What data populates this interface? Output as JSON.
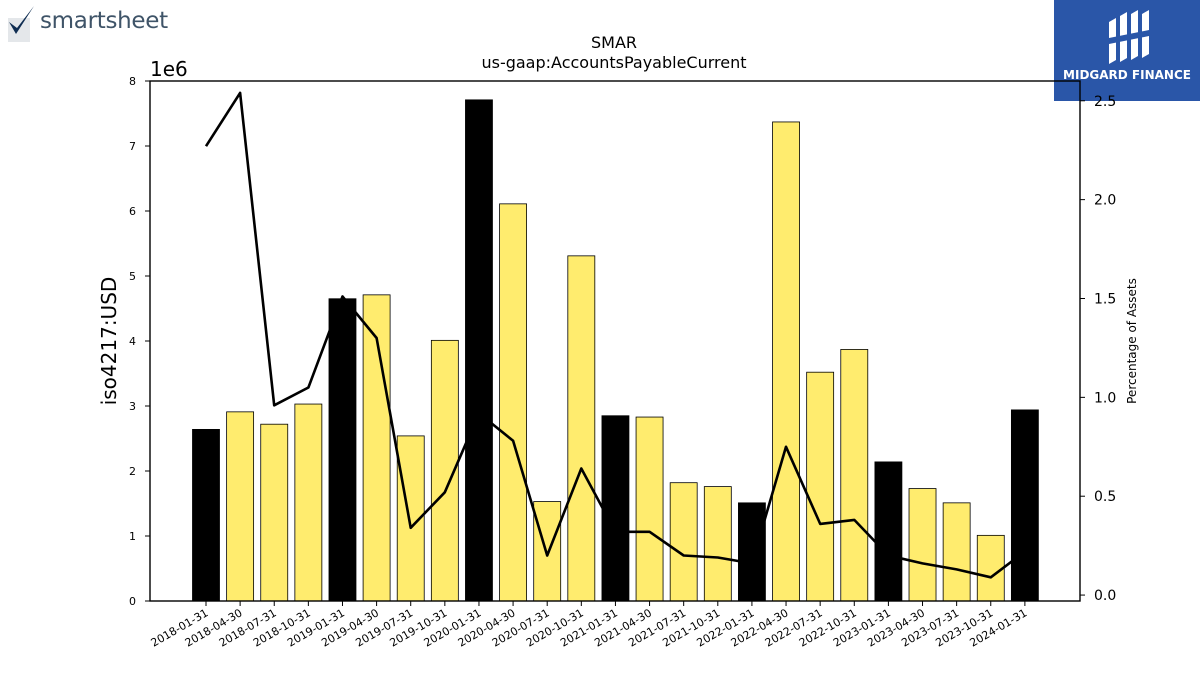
{
  "logos": {
    "left_wordmark": "smartsheet",
    "right_brand": "MIDGARD FINANCE"
  },
  "colors": {
    "bar_yellow": "#ffec6e",
    "bar_black": "#000000",
    "line": "#000000",
    "logo_right_bg": "#2a56a8",
    "logo_left_text": "#3f5468"
  },
  "chart_data": {
    "type": "bar",
    "title": "SMAR",
    "subtitle": "us-gaap:AccountsPayableCurrent",
    "ylabel": "iso4217:USD",
    "y_scale_label": "1e6",
    "y2label": "Percentage of Assets",
    "ylim": [
      0,
      8000000
    ],
    "y2lim": [
      -0.03,
      2.6
    ],
    "yticks": [
      0,
      1,
      2,
      3,
      4,
      5,
      6,
      7,
      8
    ],
    "y2ticks": [
      "0.0",
      "0.5",
      "1.0",
      "1.5",
      "2.0",
      "2.5"
    ],
    "grid": false,
    "categories": [
      "2018-01-31",
      "2018-04-30",
      "2018-07-31",
      "2018-10-31",
      "2019-01-31",
      "2019-04-30",
      "2019-07-31",
      "2019-10-31",
      "2020-01-31",
      "2020-04-30",
      "2020-07-31",
      "2020-10-31",
      "2021-01-31",
      "2021-04-30",
      "2021-07-31",
      "2021-10-31",
      "2022-01-31",
      "2022-04-30",
      "2022-07-31",
      "2022-10-31",
      "2023-01-31",
      "2023-04-30",
      "2023-07-31",
      "2023-10-31",
      "2024-01-31"
    ],
    "series": [
      {
        "kind": "bar",
        "values": [
          2640000,
          2910000,
          2720000,
          3030000,
          4650000,
          4710000,
          2540000,
          4010000,
          7710000,
          6110000,
          1530000,
          5310000,
          2850000,
          2830000,
          1820000,
          1760000,
          1510000,
          7370000,
          3520000,
          3870000,
          2140000,
          1730000,
          1510000,
          1010000,
          2940000
        ],
        "fiscal_year_end": [
          true,
          false,
          false,
          false,
          true,
          false,
          false,
          false,
          true,
          false,
          false,
          false,
          true,
          false,
          false,
          false,
          true,
          false,
          false,
          false,
          true,
          false,
          false,
          false,
          true
        ]
      },
      {
        "kind": "line",
        "axis": "right",
        "values": [
          2.27,
          2.54,
          0.96,
          1.05,
          1.51,
          1.3,
          0.34,
          0.52,
          0.92,
          0.78,
          0.2,
          0.64,
          0.32,
          0.32,
          0.2,
          0.19,
          0.16,
          0.75,
          0.36,
          0.38,
          0.2,
          0.16,
          0.13,
          0.09,
          0.22
        ]
      }
    ]
  }
}
